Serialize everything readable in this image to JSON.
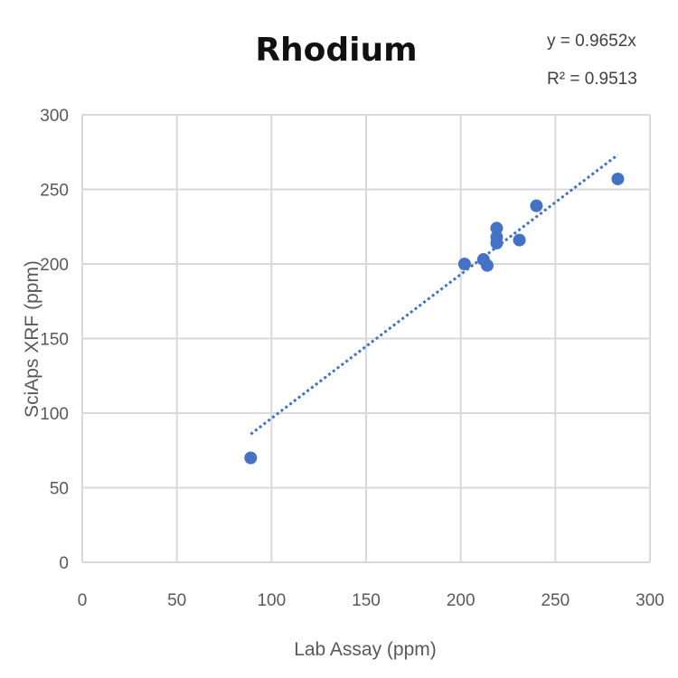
{
  "chart_data": {
    "type": "scatter",
    "title": "Rhodium",
    "xlabel": "Lab Assay (ppm)",
    "ylabel": "SciAps XRF (ppm)",
    "xlim": [
      0,
      300
    ],
    "ylim": [
      0,
      300
    ],
    "x_ticks": [
      "0",
      "50",
      "100",
      "150",
      "200",
      "250",
      "300"
    ],
    "y_ticks": [
      "0",
      "50",
      "100",
      "150",
      "200",
      "250",
      "300"
    ],
    "grid": true,
    "legend": "none",
    "point_color": "#4472c4",
    "points": [
      {
        "x": 89,
        "y": 70
      },
      {
        "x": 202,
        "y": 200
      },
      {
        "x": 212,
        "y": 203
      },
      {
        "x": 214,
        "y": 199
      },
      {
        "x": 219,
        "y": 224
      },
      {
        "x": 219,
        "y": 218
      },
      {
        "x": 219,
        "y": 214
      },
      {
        "x": 231,
        "y": 216
      },
      {
        "x": 240,
        "y": 239
      },
      {
        "x": 283,
        "y": 257
      }
    ],
    "trendline": {
      "type": "linear",
      "slope": 0.9652,
      "intercept": 0,
      "x_start": 89,
      "x_end": 283,
      "style": "dotted",
      "equation": "y = 0.9652x",
      "r_squared": "R² = 0.9513"
    }
  }
}
